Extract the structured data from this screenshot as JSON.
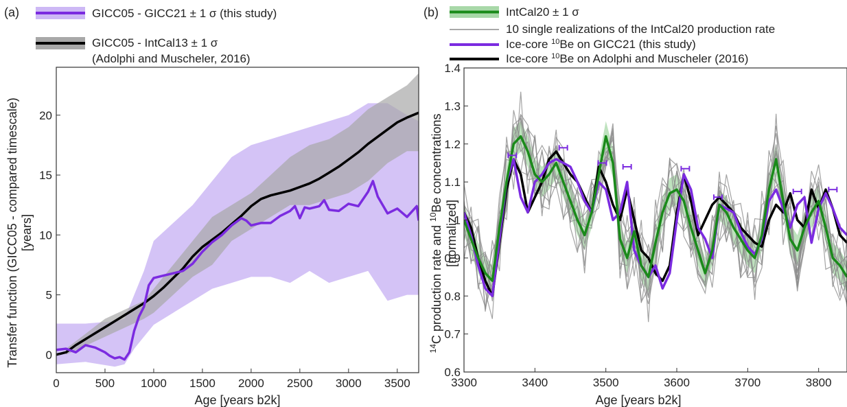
{
  "chart_data": [
    {
      "panel": "(a)",
      "type": "line",
      "xlabel": "Age [years b2k]",
      "ylabel_line1": "Transfer function (GICC05 - compared timescale)",
      "ylabel_line2": "[years]",
      "xlim": [
        0,
        3720
      ],
      "ylim": [
        -1.5,
        24
      ],
      "xticks": [
        0,
        500,
        1000,
        1500,
        2000,
        2500,
        3000,
        3500
      ],
      "yticks": [
        0,
        5,
        10,
        15,
        20
      ],
      "grid": false,
      "legend": [
        {
          "label": "GICC05 - GICC21 ± 1 σ (this study)",
          "line": "#7b2be0",
          "fill": "#cdb8f5"
        },
        {
          "label": "GICC05 - IntCal13 ± 1 σ",
          "label2": "(Adolphi and Muscheler, 2016)",
          "line": "#000000",
          "fill": "#a8a8a8"
        }
      ],
      "series": [
        {
          "name": "GICC05 - GICC21",
          "color": "#7b2be0",
          "x": [
            0,
            100,
            200,
            300,
            400,
            500,
            550,
            600,
            650,
            700,
            750,
            800,
            850,
            900,
            950,
            1000,
            1100,
            1200,
            1300,
            1400,
            1500,
            1600,
            1700,
            1800,
            1900,
            1950,
            2000,
            2100,
            2200,
            2300,
            2400,
            2450,
            2500,
            2550,
            2600,
            2700,
            2750,
            2800,
            2900,
            3000,
            3100,
            3200,
            3250,
            3300,
            3400,
            3500,
            3600,
            3700,
            3720
          ],
          "y": [
            0.4,
            0.5,
            0.2,
            0.8,
            0.6,
            0.2,
            -0.1,
            -0.3,
            -0.2,
            -0.4,
            0.2,
            2.0,
            3.2,
            4.0,
            5.8,
            6.4,
            6.6,
            6.8,
            7.0,
            7.6,
            8.6,
            9.4,
            10.0,
            10.8,
            11.4,
            11.2,
            10.8,
            11.0,
            11.0,
            11.6,
            12.0,
            12.4,
            11.4,
            12.3,
            12.2,
            12.4,
            12.9,
            12.1,
            12.0,
            12.6,
            12.4,
            13.6,
            14.5,
            13.2,
            11.8,
            12.2,
            11.5,
            12.4,
            11.2
          ]
        },
        {
          "name": "GICC05 - IntCal13",
          "color": "#000000",
          "x": [
            0,
            100,
            200,
            300,
            400,
            500,
            600,
            700,
            800,
            900,
            1000,
            1100,
            1200,
            1300,
            1400,
            1500,
            1600,
            1700,
            1800,
            1900,
            2000,
            2100,
            2200,
            2300,
            2400,
            2500,
            2600,
            2700,
            2800,
            2900,
            3000,
            3100,
            3200,
            3300,
            3400,
            3500,
            3600,
            3720
          ],
          "y": [
            0,
            0.2,
            0.8,
            1.3,
            1.8,
            2.3,
            2.8,
            3.3,
            3.8,
            4.3,
            4.9,
            5.6,
            6.4,
            7.2,
            8.2,
            9.0,
            9.6,
            10.2,
            10.9,
            11.6,
            12.4,
            13.0,
            13.3,
            13.5,
            13.7,
            14.0,
            14.3,
            14.7,
            15.2,
            15.7,
            16.3,
            16.9,
            17.6,
            18.2,
            18.8,
            19.4,
            19.8,
            20.2
          ]
        }
      ],
      "bands": [
        {
          "name": "GICC05 - GICC21 ± 1 σ",
          "color": "#cdb8f5",
          "x": [
            0,
            300,
            600,
            700,
            800,
            900,
            1000,
            1200,
            1400,
            1600,
            1800,
            2000,
            2200,
            2400,
            2600,
            2800,
            3000,
            3200,
            3400,
            3600,
            3720
          ],
          "lower": [
            -0.8,
            -0.6,
            -1.0,
            -0.8,
            0.5,
            1.5,
            2.5,
            3.5,
            4.5,
            5.5,
            6.0,
            6.5,
            6.5,
            6.0,
            7.0,
            6.0,
            6.5,
            7.0,
            4.5,
            5.0,
            5.0
          ],
          "upper": [
            2.6,
            2.6,
            2.8,
            3.0,
            5.0,
            7.0,
            9.5,
            11.0,
            12.5,
            14.5,
            16.5,
            17.5,
            18.0,
            18.5,
            19.0,
            19.5,
            20.0,
            21.0,
            21.0,
            20.0,
            19.5
          ]
        },
        {
          "name": "GICC05 - IntCal13 ± 1 σ",
          "color": "#a8a8a8",
          "x": [
            100,
            500,
            900,
            1000,
            1200,
            1400,
            1600,
            1800,
            2000,
            2200,
            2400,
            2600,
            2800,
            3000,
            3200,
            3400,
            3600,
            3720
          ],
          "lower": [
            0,
            1.5,
            3.0,
            3.5,
            5.0,
            6.5,
            7.5,
            9.5,
            10.5,
            11.5,
            12.5,
            12.5,
            13.0,
            13.5,
            14.5,
            16.0,
            17.0,
            17.0
          ],
          "upper": [
            0.5,
            3.0,
            4.5,
            5.5,
            7.5,
            9.5,
            11.5,
            12.5,
            13.5,
            15.0,
            16.5,
            17.5,
            18.0,
            19.0,
            20.5,
            21.5,
            22.5,
            23.5
          ]
        }
      ]
    },
    {
      "panel": "(b)",
      "type": "line",
      "xlabel": "Age [years b2k]",
      "ylabel_line1": "14C production rate and 10Be concentrations",
      "ylabel_line2": "[normalized]",
      "xlim": [
        3300,
        3840
      ],
      "ylim": [
        0.6,
        1.4
      ],
      "xticks": [
        3300,
        3400,
        3500,
        3600,
        3700,
        3800
      ],
      "yticks": [
        0.6,
        0.7,
        0.8,
        0.9,
        1,
        1.1,
        1.2,
        1.3,
        1.4
      ],
      "ytick_labels": [
        "0.6",
        "0.7",
        "0.8",
        "0.9",
        "1",
        "1.1",
        "1.2",
        "1.3",
        "1.4"
      ],
      "grid": false,
      "legend": [
        {
          "label": "IntCal20 ± 1 σ",
          "line": "#1a8a1a",
          "fill": "#a8d8a8"
        },
        {
          "label": "10 single realizations of the IntCal20 production rate",
          "line": "#8c8c8c"
        },
        {
          "label_pre": "Ice-core ",
          "sup": "10",
          "label_post": "Be on GICC21 (this study)",
          "line": "#7b2be0"
        },
        {
          "label_pre": "Ice-core ",
          "sup": "10",
          "label_post": "Be on Adolphi and Muscheler (2016)",
          "line": "#000000"
        }
      ],
      "series": [
        {
          "name": "IntCal20",
          "color": "#1a8a1a",
          "x": [
            3300,
            3310,
            3320,
            3330,
            3340,
            3350,
            3360,
            3370,
            3380,
            3390,
            3400,
            3410,
            3420,
            3430,
            3440,
            3450,
            3460,
            3470,
            3480,
            3490,
            3500,
            3510,
            3520,
            3530,
            3540,
            3550,
            3560,
            3570,
            3580,
            3590,
            3600,
            3610,
            3620,
            3630,
            3640,
            3650,
            3660,
            3670,
            3680,
            3690,
            3700,
            3710,
            3720,
            3730,
            3740,
            3750,
            3760,
            3770,
            3780,
            3790,
            3800,
            3810,
            3820,
            3830,
            3840
          ],
          "y": [
            1.0,
            0.95,
            0.9,
            0.86,
            0.84,
            0.98,
            1.1,
            1.2,
            1.22,
            1.18,
            1.12,
            1.1,
            1.12,
            1.15,
            1.1,
            1.05,
            1.0,
            0.96,
            1.02,
            1.12,
            1.22,
            1.15,
            0.95,
            0.9,
            0.97,
            0.88,
            0.85,
            0.94,
            1.02,
            1.07,
            1.08,
            1.05,
            0.98,
            0.92,
            0.86,
            0.92,
            1.04,
            1.02,
            0.98,
            0.95,
            0.92,
            0.9,
            0.96,
            1.08,
            1.16,
            1.05,
            0.95,
            0.92,
            0.98,
            1.02,
            1.05,
            0.98,
            0.9,
            0.88,
            0.85
          ]
        },
        {
          "name": "Ice-core 10Be on GICC21",
          "color": "#7b2be0",
          "x": [
            3300,
            3310,
            3320,
            3330,
            3340,
            3350,
            3360,
            3370,
            3380,
            3390,
            3400,
            3410,
            3420,
            3430,
            3440,
            3450,
            3460,
            3470,
            3480,
            3490,
            3500,
            3510,
            3520,
            3530,
            3540,
            3550,
            3560,
            3570,
            3580,
            3590,
            3600,
            3610,
            3620,
            3630,
            3640,
            3650,
            3660,
            3670,
            3680,
            3690,
            3700,
            3710,
            3720,
            3730,
            3740,
            3750,
            3760,
            3770,
            3780,
            3790,
            3800,
            3810,
            3820,
            3830,
            3840
          ],
          "y": [
            1.02,
            0.96,
            0.88,
            0.82,
            0.8,
            0.95,
            1.1,
            1.16,
            1.06,
            1.02,
            1.1,
            1.12,
            1.15,
            1.16,
            1.15,
            1.14,
            1.1,
            1.05,
            1.02,
            1.1,
            1.08,
            1.0,
            1.02,
            1.1,
            0.92,
            0.88,
            0.85,
            0.88,
            0.82,
            0.86,
            1.0,
            1.12,
            1.08,
            0.98,
            0.95,
            0.9,
            1.04,
            1.03,
            1.02,
            0.97,
            0.93,
            0.91,
            0.95,
            1.05,
            1.08,
            1.03,
            0.98,
            1.04,
            1.06,
            0.94,
            1.03,
            1.07,
            1.03,
            0.98,
            0.96
          ]
        },
        {
          "name": "Ice-core 10Be on Adolphi and Muscheler (2016)",
          "color": "#000000",
          "x": [
            3300,
            3310,
            3320,
            3330,
            3340,
            3350,
            3360,
            3370,
            3380,
            3390,
            3400,
            3410,
            3420,
            3430,
            3440,
            3450,
            3460,
            3470,
            3480,
            3490,
            3500,
            3510,
            3520,
            3530,
            3540,
            3550,
            3560,
            3570,
            3580,
            3590,
            3600,
            3610,
            3620,
            3630,
            3640,
            3650,
            3660,
            3670,
            3680,
            3690,
            3700,
            3710,
            3720,
            3730,
            3740,
            3750,
            3760,
            3770,
            3780,
            3790,
            3800,
            3810,
            3820,
            3830,
            3840
          ],
          "y": [
            1.02,
            0.98,
            0.9,
            0.84,
            0.8,
            0.94,
            1.08,
            1.16,
            1.12,
            1.02,
            1.06,
            1.1,
            1.16,
            1.18,
            1.15,
            1.12,
            1.1,
            1.06,
            1.02,
            1.14,
            1.1,
            1.04,
            1.0,
            1.08,
            1.0,
            0.92,
            0.9,
            0.86,
            0.84,
            0.88,
            1.02,
            1.12,
            1.05,
            0.96,
            1.0,
            1.04,
            1.06,
            1.04,
            1.02,
            0.98,
            0.96,
            0.94,
            0.93,
            1.0,
            1.04,
            1.02,
            1.07,
            1.0,
            0.98,
            1.08,
            1.03,
            1.08,
            1.03,
            0.96,
            0.94
          ]
        }
      ],
      "realizations": {
        "name": "10 single realizations of the IntCal20 production rate",
        "color": "#8c8c8c",
        "base": "IntCal20",
        "amplitude": [
          0.09,
          0.12,
          0.07,
          0.14,
          0.1,
          0.08,
          0.13,
          0.11,
          0.06,
          0.15
        ]
      },
      "bands": [
        {
          "name": "IntCal20 ± 1 σ",
          "color": "#a8d8a8",
          "x": [
            3300,
            3310,
            3320,
            3330,
            3340,
            3350,
            3360,
            3370,
            3380,
            3390,
            3400,
            3410,
            3420,
            3430,
            3440,
            3450,
            3460,
            3470,
            3480,
            3490,
            3500,
            3510,
            3520,
            3530,
            3540,
            3550,
            3560,
            3570,
            3580,
            3590,
            3600,
            3610,
            3620,
            3630,
            3640,
            3650,
            3660,
            3670,
            3680,
            3690,
            3700,
            3710,
            3720,
            3730,
            3740,
            3750,
            3760,
            3770,
            3780,
            3790,
            3800,
            3810,
            3820,
            3830,
            3840
          ],
          "halfwidth": 0.04
        }
      ],
      "markers": [
        {
          "x": 3368,
          "y": 1.17,
          "color": "#7b2be0"
        },
        {
          "x": 3440,
          "y": 1.19,
          "color": "#7b2be0"
        },
        {
          "x": 3495,
          "y": 1.15,
          "color": "#7b2be0"
        },
        {
          "x": 3530,
          "y": 1.14,
          "color": "#7b2be0"
        },
        {
          "x": 3612,
          "y": 1.135,
          "color": "#7b2be0"
        },
        {
          "x": 3658,
          "y": 1.06,
          "color": "#7b2be0"
        },
        {
          "x": 3770,
          "y": 1.075,
          "color": "#7b2be0"
        },
        {
          "x": 3820,
          "y": 1.08,
          "color": "#7b2be0"
        }
      ]
    }
  ]
}
